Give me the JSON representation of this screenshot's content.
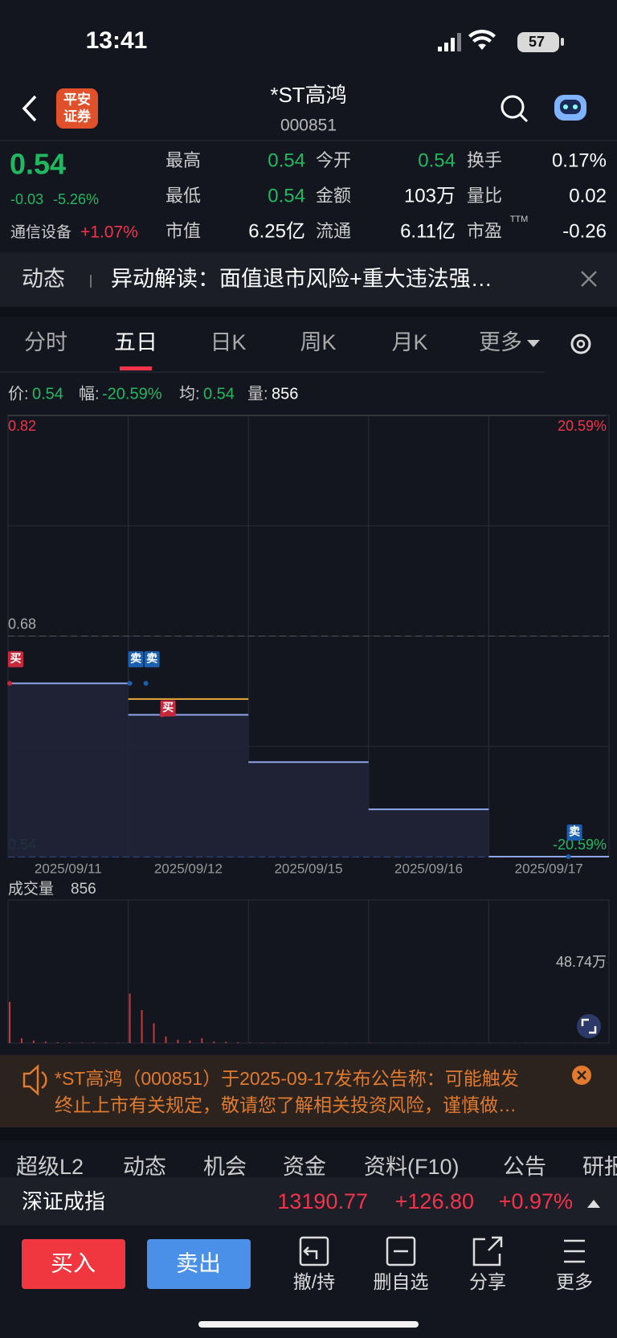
{
  "status_bar": {
    "time": "13:41",
    "battery": "57"
  },
  "header": {
    "logo": [
      "平安",
      "证券"
    ],
    "title": "*ST高鸿",
    "code": "000851"
  },
  "quote": {
    "price": "0.54",
    "change": "-0.03",
    "change_pct": "-5.26%",
    "sector": "通信设备",
    "sector_change": "+1.07%",
    "fields": [
      {
        "label": "最高",
        "value": "0.54",
        "color": "#22b861"
      },
      {
        "label": "今开",
        "value": "0.54",
        "color": "#22b861"
      },
      {
        "label": "换手",
        "value": "0.17%",
        "color": "#ffffff"
      },
      {
        "label": "最低",
        "value": "0.54",
        "color": "#22b861"
      },
      {
        "label": "金额",
        "value": "103万",
        "color": "#ffffff"
      },
      {
        "label": "量比",
        "value": "0.02",
        "color": "#ffffff"
      },
      {
        "label": "市值",
        "value": "6.25亿",
        "color": "#ffffff"
      },
      {
        "label": "流通",
        "value": "6.11亿",
        "color": "#ffffff"
      },
      {
        "label": "市盈",
        "value": "-0.26",
        "color": "#ffffff",
        "sup": "TTM"
      }
    ]
  },
  "news": {
    "tag": "动态",
    "text": "异动解读：面值退市风险+重大违法强…"
  },
  "period_tabs": {
    "items": [
      "分时",
      "五日",
      "日K",
      "周K",
      "月K",
      "更多"
    ],
    "selected": 1
  },
  "readout": [
    {
      "label": "价:",
      "value": "0.54",
      "color": "#22b861"
    },
    {
      "label": "幅:",
      "value": "-20.59%",
      "color": "#22b861"
    },
    {
      "label": "均:",
      "value": "0.54",
      "color": "#22b861"
    },
    {
      "label": "量:",
      "value": "856",
      "color": "#ffffff"
    }
  ],
  "chart_data": [
    {
      "type": "line",
      "categories": [
        "2025/09/11",
        "2025/09/12",
        "2025/09/15",
        "2025/09/16",
        "2025/09/17"
      ],
      "series": [
        {
          "color": "#8ea6ea",
          "values": [
            0.65,
            0.63,
            0.6,
            0.57,
            0.54
          ]
        },
        {
          "color": "#e8a93a",
          "values": [
            null,
            0.64,
            null,
            null,
            null
          ]
        }
      ],
      "ylim": [
        0.54,
        0.82
      ],
      "yticks": [
        0.82,
        0.68,
        0.54
      ],
      "y2lim": [
        -20.59,
        20.59
      ],
      "y2ticks": [
        {
          "value": 20.59,
          "label": "20.59%"
        },
        {
          "value": -20.59,
          "label": "-20.59%"
        }
      ],
      "annotations": [
        {
          "text": "买",
          "category": 0,
          "value": 0.65,
          "color": "#c8283c"
        },
        {
          "text": "卖",
          "category": 1,
          "value": 0.65,
          "color": "#1a5fb0"
        },
        {
          "text": "卖",
          "category": 1,
          "value": 0.65,
          "color": "#1a5fb0"
        },
        {
          "text": "买",
          "category": 1,
          "value": 0.63,
          "color": "#c8283c"
        },
        {
          "text": "卖",
          "category": 4,
          "value": 0.54,
          "color": "#1a5fb0"
        }
      ]
    },
    {
      "type": "bar",
      "title": "成交量",
      "current": "856",
      "color": "#c23a3a",
      "values": [
        25,
        3,
        1.5,
        1,
        0.5,
        0.4,
        0.3,
        0.3,
        0.2,
        0.2,
        30,
        20,
        12,
        4,
        2,
        1.5,
        3,
        1,
        0.8,
        0.5,
        0.3,
        0.2,
        0.2,
        0.2,
        0.1,
        0.1,
        0.1,
        0.1,
        0.1,
        0.1,
        0.2,
        0.1,
        0.1,
        0.1,
        0.1,
        0.1,
        0.1,
        0.1,
        0.1,
        0.1,
        0.1,
        0.1,
        0.1,
        0.1,
        0.1,
        0.1,
        0.1,
        0.1,
        0.1,
        0.1
      ],
      "ylim": [
        0,
        86.8
      ],
      "yticks": [
        {
          "value": 48.74,
          "label": "48.74万"
        }
      ]
    }
  ],
  "notice": {
    "lines": [
      "*ST高鸿（000851）于2025-09-17发布公告称：可能触发",
      "终止上市有关规定，敬请您了解相关投资风险，谨慎做…"
    ]
  },
  "section_tabs": [
    "超级L2",
    "动态",
    "机会",
    "资金",
    "资料(F10)",
    "公告",
    "研报"
  ],
  "index_bar": {
    "name": "深证成指",
    "value": "13190.77",
    "change": "+126.80",
    "change_pct": "+0.97%"
  },
  "actions": {
    "buy": "买入",
    "sell": "卖出",
    "tools": [
      "撤/持",
      "删自选",
      "分享",
      "更多"
    ]
  }
}
